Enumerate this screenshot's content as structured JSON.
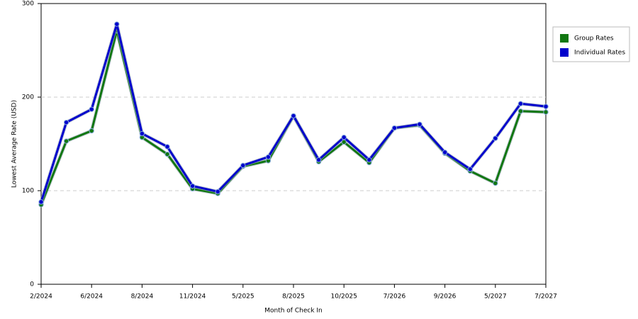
{
  "chart_data": {
    "type": "line",
    "x_label": "Month of Check In",
    "y_label": "Lowest Average Rate (USD)",
    "categories": [
      "2/2024",
      null,
      "6/2024",
      null,
      "8/2024",
      null,
      "11/2024",
      null,
      "5/2025",
      null,
      "8/2025",
      null,
      "10/2025",
      null,
      "7/2026",
      null,
      "9/2026",
      null,
      "5/2027",
      null,
      "7/2027"
    ],
    "series": [
      {
        "name": "Group Rates",
        "color": "#117711",
        "values": [
          85,
          153,
          164,
          271,
          157,
          139,
          102,
          97,
          126,
          132,
          180,
          131,
          152,
          130,
          167,
          170,
          140,
          121,
          108,
          185,
          184
        ]
      },
      {
        "name": "Individual Rates",
        "color": "#0000cc",
        "values": [
          88,
          173,
          187,
          278,
          161,
          147,
          105,
          99,
          127,
          136,
          180,
          133,
          157,
          133,
          167,
          171,
          141,
          123,
          156,
          193,
          190
        ]
      }
    ],
    "ylim": [
      0,
      300
    ],
    "yticks": [
      0,
      100,
      200,
      300
    ],
    "grid": true,
    "legend": "right"
  }
}
